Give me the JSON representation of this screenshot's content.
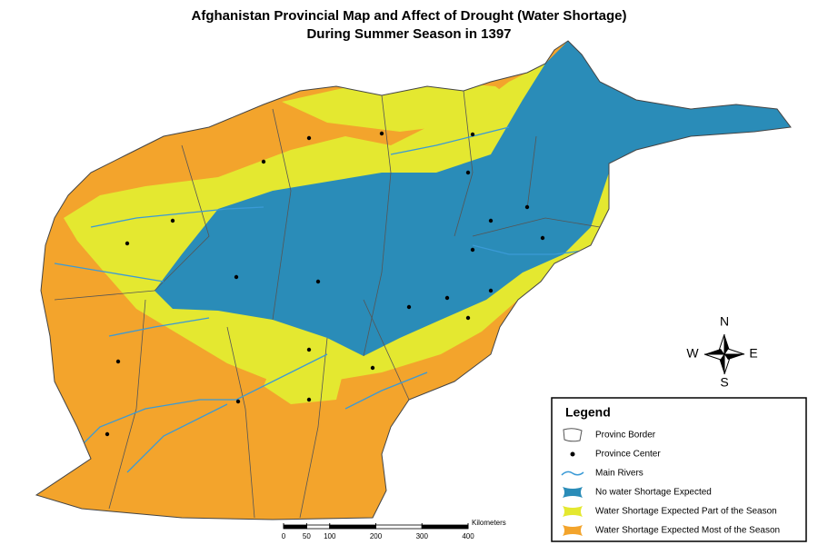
{
  "title": [
    "Afghanistan Provincial Map and Affect of Drought (Water Shortage)",
    "During Summer Season in 1397"
  ],
  "compass": {
    "north": "N",
    "east": "E",
    "south": "S",
    "west": "W"
  },
  "scale": {
    "unit": "Kilometers",
    "ticks": [
      0,
      50,
      100,
      200,
      300,
      400
    ]
  },
  "legend": {
    "title": "Legend",
    "items": [
      {
        "label": "Provinc Border",
        "kind": "border"
      },
      {
        "label": "Province Center",
        "kind": "center"
      },
      {
        "label": "Main Rivers",
        "kind": "river",
        "color": "#3a9ad6"
      },
      {
        "label": "No water Shortage Expected",
        "kind": "zone",
        "color": "#2a8cb8"
      },
      {
        "label": "Water Shortage Expected  Part of the Season",
        "kind": "zone",
        "color": "#e4e830"
      },
      {
        "label": "Water Shortage Expected  Most of the Season",
        "kind": "zone",
        "color": "#f3a42c"
      }
    ]
  }
}
